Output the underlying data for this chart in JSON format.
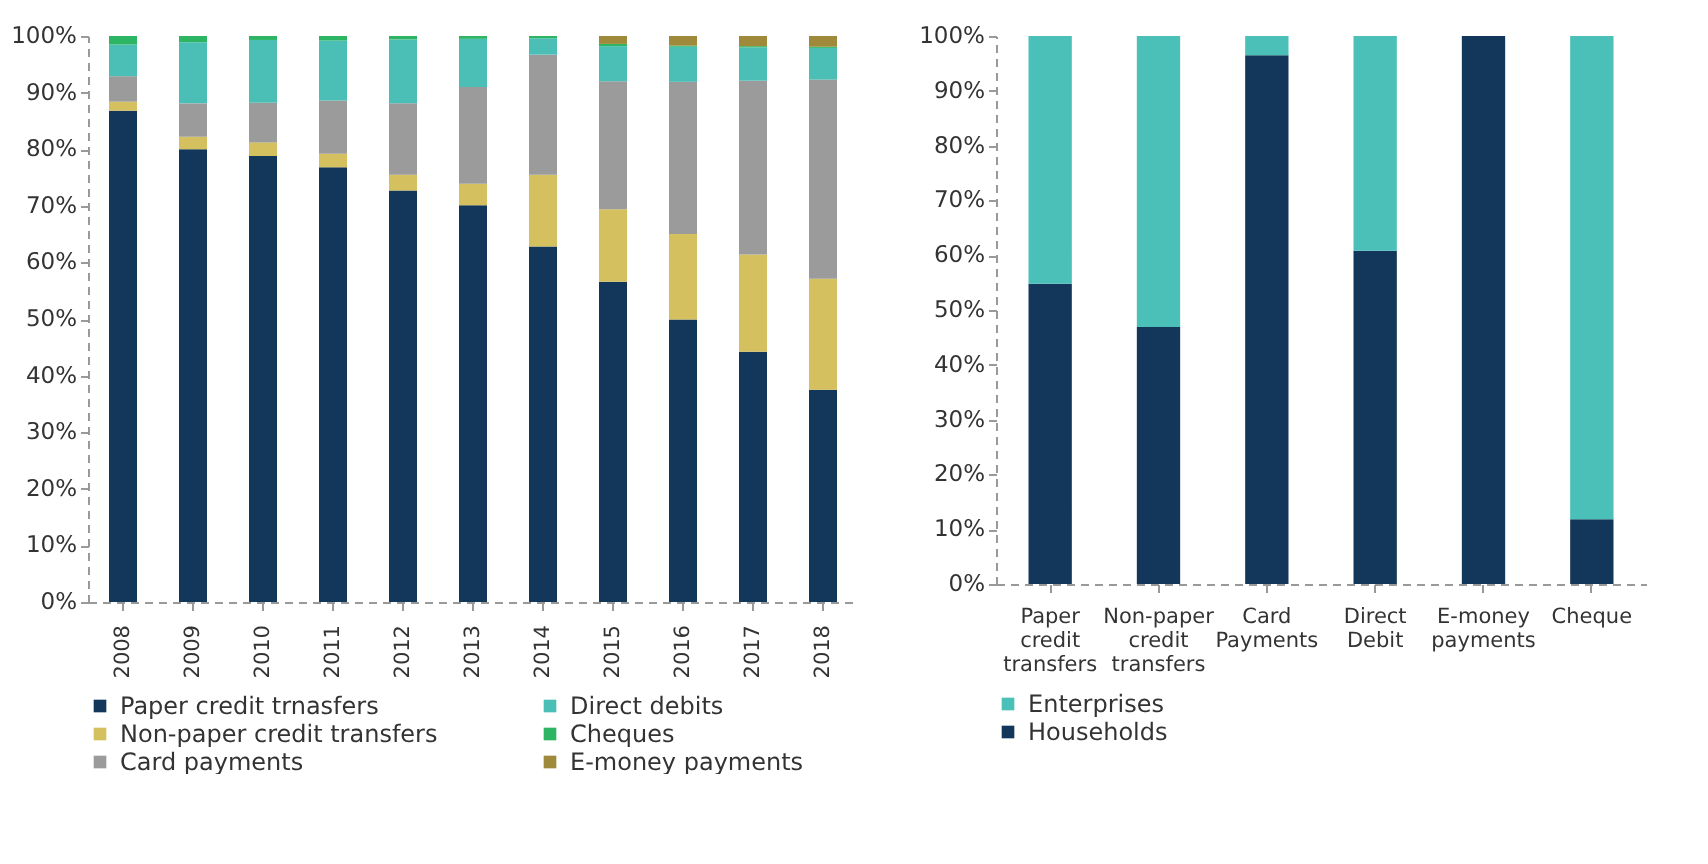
{
  "chart_data": [
    {
      "type": "bar",
      "stacked": true,
      "categories": [
        "2008",
        "2009",
        "2010",
        "2011",
        "2012",
        "2013",
        "2014",
        "2015",
        "2016",
        "2017",
        "2018"
      ],
      "series": [
        {
          "name": "Paper credit trnasfers",
          "color": "#12375a",
          "values": [
            86.8,
            80.0,
            78.8,
            76.8,
            72.7,
            70.1,
            62.8,
            56.6,
            49.9,
            44.2,
            37.5
          ]
        },
        {
          "name": "Non-paper credit transfers",
          "color": "#d4c05e",
          "values": [
            1.6,
            2.2,
            2.4,
            2.4,
            2.8,
            3.8,
            12.7,
            12.8,
            15.1,
            17.2,
            19.6
          ]
        },
        {
          "name": "Card payments",
          "color": "#9b9b9b",
          "values": [
            4.5,
            5.9,
            7.0,
            9.4,
            12.6,
            17.1,
            21.2,
            22.6,
            26.9,
            30.7,
            35.2
          ]
        },
        {
          "name": "Direct debits",
          "color": "#4bbfb6",
          "values": [
            5.6,
            10.8,
            11.1,
            10.6,
            11.3,
            8.5,
            2.9,
            6.2,
            6.2,
            5.9,
            5.6
          ]
        },
        {
          "name": "Cheques",
          "color": "#2db563",
          "values": [
            1.5,
            1.1,
            0.7,
            0.8,
            0.6,
            0.5,
            0.4,
            0.4,
            0.2,
            0.2,
            0.2
          ]
        },
        {
          "name": "E-money payments",
          "color": "#9e8a3a",
          "values": [
            0,
            0,
            0,
            0,
            0,
            0,
            0,
            1.4,
            1.7,
            1.8,
            1.9
          ]
        }
      ],
      "ylim": [
        0,
        100
      ],
      "yticks": [
        {
          "value": 0,
          "label": "0%"
        },
        {
          "value": 10,
          "label": "10%"
        },
        {
          "value": 20,
          "label": "20%"
        },
        {
          "value": 30,
          "label": "30%"
        },
        {
          "value": 40,
          "label": "40%"
        },
        {
          "value": 50,
          "label": "50%"
        },
        {
          "value": 60,
          "label": "60%"
        },
        {
          "value": 70,
          "label": "70%"
        },
        {
          "value": 80,
          "label": "80%"
        },
        {
          "value": 90,
          "label": "90%"
        },
        {
          "value": 100,
          "label": "100%"
        }
      ],
      "legend": "bottom"
    },
    {
      "type": "bar",
      "stacked": true,
      "categories": [
        "Paper credit transfers",
        "Non-paper credit transfers",
        "Card Payments",
        "Direct Debit",
        "E-money payments",
        "Cheque"
      ],
      "series": [
        {
          "name": "Households",
          "color": "#12375a",
          "values": [
            54.8,
            46.9,
            96.5,
            60.8,
            100,
            11.8
          ]
        },
        {
          "name": "Enterprises",
          "color": "#4bc0b8",
          "values": [
            45.2,
            53.1,
            3.5,
            39.2,
            0,
            88.2
          ]
        }
      ],
      "ylim": [
        0,
        100
      ],
      "yticks": [
        {
          "value": 0,
          "label": "0%"
        },
        {
          "value": 10,
          "label": "10%"
        },
        {
          "value": 20,
          "label": "20%"
        },
        {
          "value": 30,
          "label": "30%"
        },
        {
          "value": 40,
          "label": "40%"
        },
        {
          "value": 50,
          "label": "50%"
        },
        {
          "value": 60,
          "label": "60%"
        },
        {
          "value": 70,
          "label": "70%"
        },
        {
          "value": 80,
          "label": "80%"
        },
        {
          "value": 90,
          "label": "90%"
        },
        {
          "value": 100,
          "label": "100%"
        }
      ],
      "legend": "bottom"
    }
  ]
}
